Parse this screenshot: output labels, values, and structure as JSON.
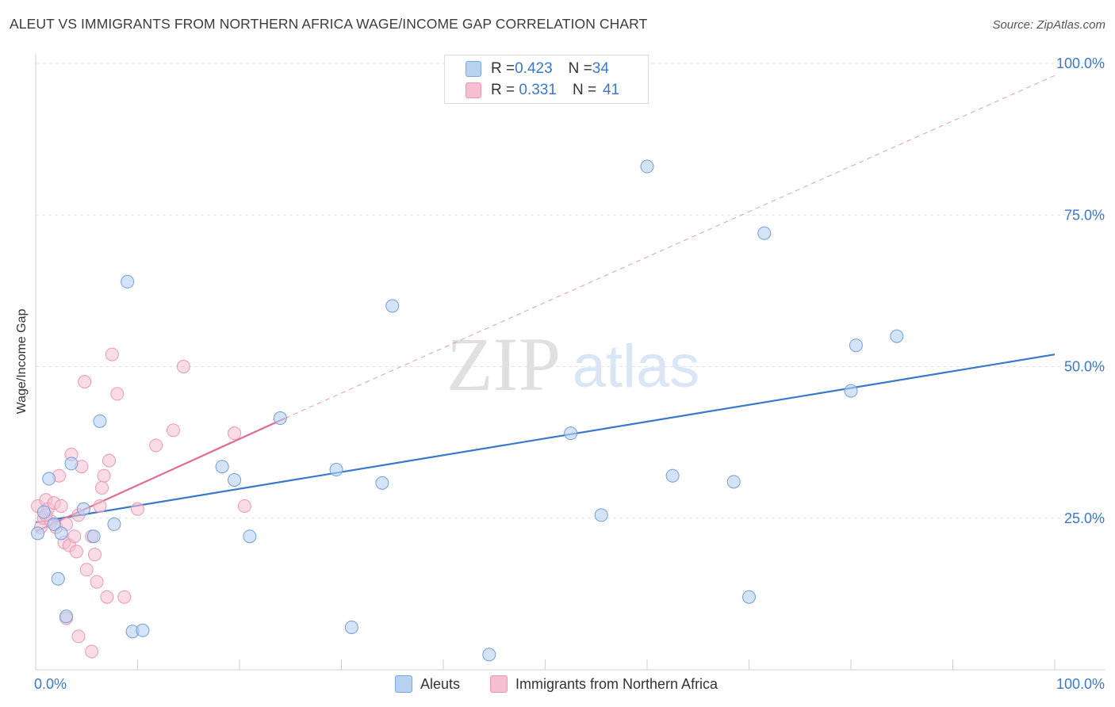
{
  "title": "ALEUT VS IMMIGRANTS FROM NORTHERN AFRICA WAGE/INCOME GAP CORRELATION CHART",
  "source": "Source: ZipAtlas.com",
  "legend": {
    "r1_label": "R = ",
    "r1_value": "0.423",
    "n1_label": "N = ",
    "n1_value": "34",
    "r2_label": "R = ",
    "r2_value": " 0.331",
    "n2_label": "N = ",
    "n2_value": "41"
  },
  "bottom_legend": {
    "s1": "Aleuts",
    "s2": "Immigrants from Northern Africa"
  },
  "colors": {
    "blue": "#3a78c9",
    "blue_fill": "#b7d1f1",
    "pink": "#e06a96",
    "pink_fill": "#f6bfd1"
  },
  "chart_data": {
    "type": "scatter",
    "title": "ALEUT VS IMMIGRANTS FROM NORTHERN AFRICA WAGE/INCOME GAP CORRELATION CHART",
    "xlabel": "",
    "ylabel": "Wage/Income Gap",
    "xlim": [
      0,
      100
    ],
    "ylim": [
      0,
      100
    ],
    "x_tick_labels": [
      "0.0%",
      "100.0%"
    ],
    "y_tick_labels": [
      "25.0%",
      "50.0%",
      "75.0%",
      "100.0%"
    ],
    "y_ticks": [
      25,
      50,
      75,
      100
    ],
    "watermark": "ZIPatlas",
    "series": [
      {
        "name": "Aleuts",
        "R": 0.423,
        "N": 34,
        "trend": {
          "x0": 0,
          "y0": 24.3,
          "x1": 100,
          "y1": 52.0
        },
        "points": [
          [
            0.2,
            22.5
          ],
          [
            0.8,
            26.0
          ],
          [
            1.3,
            31.5
          ],
          [
            1.8,
            24.0
          ],
          [
            2.2,
            15.0
          ],
          [
            2.5,
            22.5
          ],
          [
            3.5,
            34.0
          ],
          [
            4.7,
            26.5
          ],
          [
            5.7,
            22.0
          ],
          [
            6.3,
            41.0
          ],
          [
            7.7,
            24.0
          ],
          [
            9.0,
            64.0
          ],
          [
            9.5,
            6.3
          ],
          [
            10.5,
            6.5
          ],
          [
            18.3,
            33.5
          ],
          [
            19.5,
            31.3
          ],
          [
            21.0,
            22.0
          ],
          [
            24.0,
            41.5
          ],
          [
            29.5,
            33.0
          ],
          [
            35.0,
            60.0
          ],
          [
            34.0,
            30.8
          ],
          [
            3.0,
            8.8
          ],
          [
            52.5,
            39.0
          ],
          [
            55.5,
            25.5
          ],
          [
            60.0,
            83.0
          ],
          [
            62.5,
            32.0
          ],
          [
            68.5,
            31.0
          ],
          [
            70.0,
            12.0
          ],
          [
            71.5,
            72.0
          ],
          [
            80.0,
            46.0
          ],
          [
            80.5,
            53.5
          ],
          [
            84.5,
            55.0
          ],
          [
            44.5,
            2.5
          ],
          [
            31.0,
            7.0
          ]
        ]
      },
      {
        "name": "Immigrants from Northern Africa",
        "R": 0.331,
        "N": 41,
        "trend": {
          "x0": 0,
          "y0": 22.8,
          "x1": 24.5,
          "y1": 41.5
        },
        "trend_extended": {
          "x0": 24.5,
          "y0": 41.5,
          "x1": 100,
          "y1": 98.0
        },
        "points": [
          [
            0.2,
            27.0
          ],
          [
            0.5,
            23.5
          ],
          [
            0.8,
            25.0
          ],
          [
            1.0,
            28.0
          ],
          [
            1.2,
            26.5
          ],
          [
            1.5,
            24.5
          ],
          [
            1.8,
            27.5
          ],
          [
            2.0,
            23.5
          ],
          [
            2.3,
            32.0
          ],
          [
            2.5,
            27.0
          ],
          [
            2.8,
            21.0
          ],
          [
            3.0,
            24.0
          ],
          [
            3.3,
            20.5
          ],
          [
            3.5,
            35.5
          ],
          [
            3.8,
            22.0
          ],
          [
            4.0,
            19.5
          ],
          [
            4.2,
            25.5
          ],
          [
            4.5,
            33.5
          ],
          [
            4.8,
            47.5
          ],
          [
            5.0,
            16.5
          ],
          [
            5.5,
            22.0
          ],
          [
            5.8,
            19.0
          ],
          [
            6.0,
            14.5
          ],
          [
            6.3,
            27.0
          ],
          [
            6.5,
            30.0
          ],
          [
            6.7,
            32.0
          ],
          [
            7.0,
            12.0
          ],
          [
            7.2,
            34.5
          ],
          [
            7.5,
            52.0
          ],
          [
            8.0,
            45.5
          ],
          [
            8.7,
            12.0
          ],
          [
            10.0,
            26.5
          ],
          [
            11.8,
            37.0
          ],
          [
            13.5,
            39.5
          ],
          [
            14.5,
            50.0
          ],
          [
            19.5,
            39.0
          ],
          [
            20.5,
            27.0
          ],
          [
            4.2,
            5.5
          ],
          [
            5.5,
            3.0
          ],
          [
            3.0,
            8.5
          ],
          [
            1.0,
            25.5
          ]
        ]
      }
    ]
  }
}
